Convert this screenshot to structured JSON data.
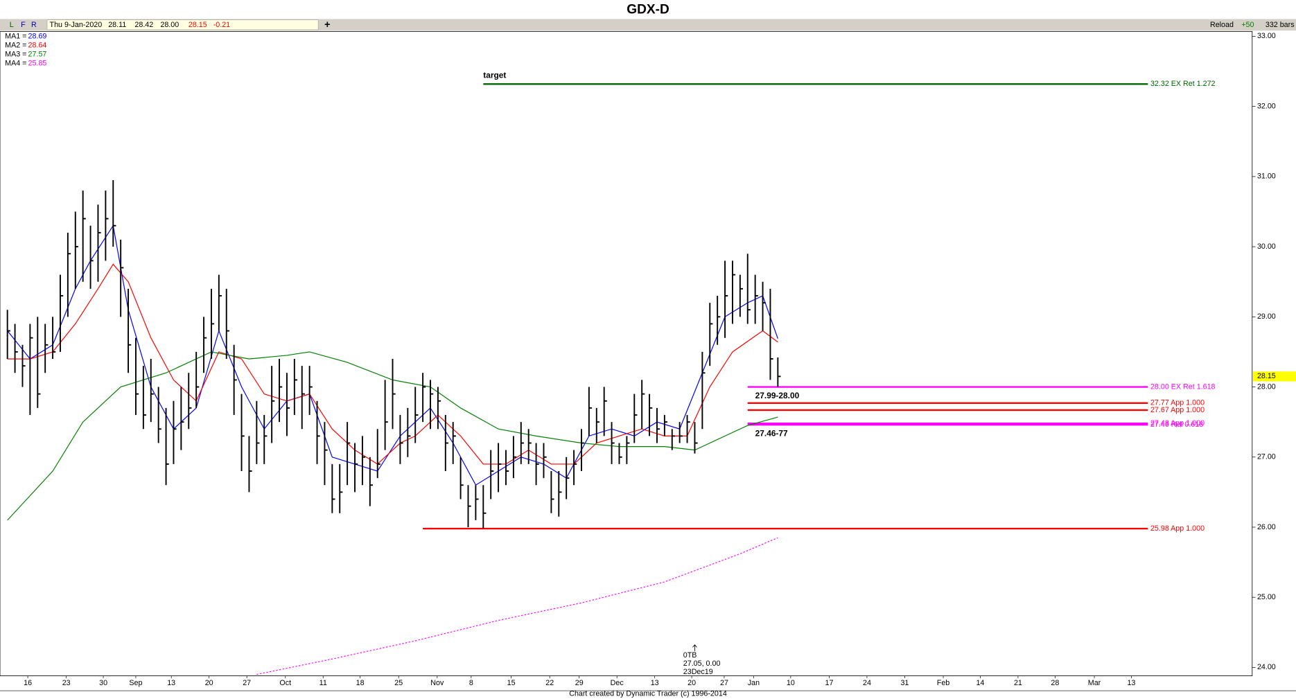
{
  "chart_data": {
    "type": "ohlc",
    "title": "GDX-D",
    "toolbar": {
      "buttons": [
        "L",
        "F",
        "R"
      ],
      "date": "Thu 9-Jan-2020",
      "fields": [
        "28.11",
        "28.42",
        "28.00",
        "28.15",
        "-0.21"
      ],
      "add": "+",
      "reload": "Reload",
      "step": "+50",
      "bars_count": "332 bars"
    },
    "footer": "Chart created by Dynamic Trader  (c) 1996-2014",
    "ylim": [
      23.88,
      33.07
    ],
    "yticks": [
      {
        "value": 24,
        "label": "24.00"
      },
      {
        "value": 25,
        "label": "25.00"
      },
      {
        "value": 26,
        "label": "26.00"
      },
      {
        "value": 27,
        "label": "27.00"
      },
      {
        "value": 28,
        "label": "28.00"
      },
      {
        "value": 29,
        "label": "29.00"
      },
      {
        "value": 30,
        "label": "30.00"
      },
      {
        "value": 31,
        "label": "31.00"
      },
      {
        "value": 32,
        "label": "32.00"
      },
      {
        "value": 33,
        "label": "33.00"
      }
    ],
    "xlim": [
      -0.98,
      164.8
    ],
    "xticks": [
      {
        "value": 2.7,
        "label": "16"
      },
      {
        "value": 7.8,
        "label": "23"
      },
      {
        "value": 12.7,
        "label": "30"
      },
      {
        "value": 17.0,
        "label": "Sep"
      },
      {
        "value": 21.7,
        "label": "13"
      },
      {
        "value": 26.7,
        "label": "20"
      },
      {
        "value": 31.7,
        "label": "27"
      },
      {
        "value": 36.8,
        "label": "Oct"
      },
      {
        "value": 41.8,
        "label": "11"
      },
      {
        "value": 46.7,
        "label": "18"
      },
      {
        "value": 51.8,
        "label": "25"
      },
      {
        "value": 56.9,
        "label": "Nov"
      },
      {
        "value": 61.4,
        "label": "8"
      },
      {
        "value": 66.7,
        "label": "15"
      },
      {
        "value": 71.8,
        "label": "22"
      },
      {
        "value": 75.7,
        "label": "29"
      },
      {
        "value": 80.7,
        "label": "Dec"
      },
      {
        "value": 85.7,
        "label": "13"
      },
      {
        "value": 90.6,
        "label": "20"
      },
      {
        "value": 94.9,
        "label": "27"
      },
      {
        "value": 98.8,
        "label": "Jan"
      },
      {
        "value": 103.7,
        "label": "10"
      },
      {
        "value": 108.8,
        "label": "17"
      },
      {
        "value": 113.8,
        "label": "24"
      },
      {
        "value": 118.8,
        "label": "31"
      },
      {
        "value": 123.9,
        "label": "Feb"
      },
      {
        "value": 128.8,
        "label": "14"
      },
      {
        "value": 133.8,
        "label": "21"
      },
      {
        "value": 138.7,
        "label": "28"
      },
      {
        "value": 143.9,
        "label": "Mar"
      },
      {
        "value": 148.8,
        "label": "13"
      }
    ],
    "bars": {
      "color": "#000000",
      "high": [
        29.1,
        28.9,
        28.6,
        28.9,
        29.0,
        28.9,
        29.0,
        29.6,
        30.2,
        30.5,
        30.8,
        30.3,
        30.6,
        30.8,
        30.95,
        30.1,
        29.4,
        28.7,
        28.3,
        28.4,
        28.0,
        27.7,
        27.8,
        28.0,
        28.2,
        28.5,
        29.0,
        29.4,
        29.6,
        29.4,
        28.6,
        27.9,
        27.3,
        27.8,
        27.6,
        28.3,
        28.4,
        28.2,
        28.4,
        28.3,
        28.3,
        27.8,
        27.5,
        26.9,
        26.9,
        27.5,
        27.2,
        27.3,
        27.0,
        27.4,
        28.1,
        28.4,
        27.6,
        27.7,
        28.0,
        28.2,
        28.1,
        28.0,
        27.6,
        27.5,
        27.0,
        26.6,
        26.6,
        26.6,
        27.1,
        27.2,
        27.1,
        27.3,
        27.5,
        27.4,
        27.2,
        27.2,
        26.8,
        26.8,
        27.0,
        27.1,
        27.4,
        28.0,
        27.7,
        28.0,
        27.5,
        27.2,
        27.3,
        27.9,
        28.1,
        27.9,
        27.7,
        27.6,
        27.4,
        27.5,
        27.6,
        27.5,
        28.5,
        29.2,
        29.3,
        29.8,
        29.8,
        29.6,
        29.9,
        29.6,
        29.5,
        29.4,
        28.42
      ],
      "low": [
        28.4,
        28.2,
        28.0,
        27.6,
        27.7,
        28.2,
        28.4,
        28.5,
        29.0,
        29.4,
        29.5,
        29.4,
        29.5,
        29.8,
        30.0,
        29.0,
        28.2,
        27.6,
        27.4,
        27.5,
        27.2,
        26.6,
        26.9,
        27.1,
        27.4,
        27.7,
        28.2,
        28.4,
        28.8,
        28.4,
        27.6,
        26.8,
        26.5,
        26.9,
        26.9,
        27.2,
        27.5,
        27.3,
        27.6,
        27.4,
        27.6,
        26.9,
        26.6,
        26.2,
        26.2,
        26.6,
        26.5,
        26.6,
        26.3,
        26.7,
        27.1,
        27.4,
        26.9,
        27.0,
        27.2,
        27.5,
        27.4,
        27.4,
        26.8,
        26.9,
        26.4,
        26.0,
        26.1,
        25.98,
        26.4,
        26.5,
        26.6,
        26.7,
        26.9,
        26.9,
        26.6,
        26.7,
        26.2,
        26.15,
        26.4,
        26.6,
        26.8,
        27.3,
        27.2,
        27.3,
        26.9,
        26.9,
        26.9,
        27.2,
        27.4,
        27.3,
        27.2,
        27.3,
        27.1,
        27.2,
        27.2,
        27.05,
        27.4,
        28.3,
        28.6,
        28.7,
        28.9,
        29.0,
        28.9,
        28.9,
        28.8,
        28.1,
        28.0
      ],
      "close": [
        28.8,
        28.5,
        28.3,
        28.7,
        27.9,
        28.6,
        28.5,
        29.3,
        29.9,
        30.0,
        30.4,
        29.8,
        30.2,
        30.4,
        30.3,
        29.7,
        28.6,
        27.9,
        27.6,
        27.9,
        27.4,
        26.9,
        27.4,
        27.5,
        27.7,
        28.0,
        28.7,
        28.9,
        29.3,
        28.8,
        28.1,
        27.3,
        26.8,
        27.2,
        27.3,
        27.8,
        28.0,
        27.7,
        28.1,
        27.9,
        28.0,
        27.3,
        27.1,
        26.4,
        26.5,
        27.2,
        26.9,
        27.0,
        26.6,
        26.9,
        27.5,
        27.9,
        27.2,
        27.3,
        27.6,
        28.0,
        27.9,
        27.8,
        27.2,
        27.3,
        26.6,
        26.3,
        26.4,
        26.2,
        26.8,
        26.9,
        26.8,
        27.0,
        27.2,
        27.2,
        26.9,
        27.0,
        26.4,
        26.5,
        26.7,
        26.9,
        27.2,
        27.7,
        27.5,
        27.8,
        27.2,
        27.0,
        27.2,
        27.6,
        27.9,
        27.7,
        27.4,
        27.5,
        27.3,
        27.3,
        27.5,
        27.2,
        28.2,
        28.9,
        29.0,
        29.3,
        29.6,
        29.4,
        29.1,
        29.3,
        29.2,
        28.4,
        28.15
      ]
    },
    "ma": [
      {
        "label": "MA1 =",
        "last": 28.69,
        "color": "#0000ff",
        "dotted": false,
        "x": [
          0,
          3,
          6,
          9,
          11,
          14,
          16,
          19,
          22,
          25,
          28,
          31,
          34,
          37,
          40,
          43,
          46,
          49,
          52,
          56,
          59,
          62,
          65,
          68,
          71,
          74,
          77,
          80,
          83,
          86,
          89,
          92,
          95,
          98,
          100,
          102
        ],
        "values": [
          28.8,
          28.4,
          28.6,
          29.4,
          29.8,
          30.3,
          29.1,
          28.0,
          27.4,
          27.7,
          28.8,
          28.0,
          27.4,
          27.8,
          27.9,
          27.0,
          26.9,
          26.8,
          27.3,
          27.7,
          27.2,
          26.6,
          26.8,
          27.0,
          26.9,
          26.7,
          27.3,
          27.4,
          27.3,
          27.5,
          27.4,
          28.2,
          29.0,
          29.2,
          29.3,
          28.69
        ]
      },
      {
        "label": "MA2 =",
        "last": 28.64,
        "color": "#ff0000",
        "dotted": false,
        "x": [
          0,
          3,
          6,
          9,
          12,
          14,
          16,
          19,
          22,
          25,
          28,
          31,
          34,
          37,
          40,
          43,
          46,
          49,
          52,
          54,
          57,
          60,
          63,
          66,
          69,
          72,
          75,
          78,
          81,
          84,
          87,
          90,
          93,
          96,
          100,
          102
        ],
        "values": [
          28.4,
          28.4,
          28.5,
          28.9,
          29.4,
          29.75,
          29.5,
          28.7,
          28.1,
          27.8,
          28.5,
          28.4,
          27.9,
          27.8,
          27.9,
          27.4,
          27.1,
          26.9,
          27.2,
          27.3,
          27.6,
          27.3,
          26.9,
          26.9,
          27.1,
          26.9,
          26.9,
          27.2,
          27.3,
          27.4,
          27.3,
          27.3,
          28.0,
          28.5,
          28.8,
          28.64
        ]
      },
      {
        "label": "MA3 =",
        "last": 27.57,
        "color": "#008000",
        "dotted": false,
        "x": [
          0,
          6,
          10,
          15,
          21,
          27,
          32,
          37,
          40,
          45,
          51,
          56,
          60,
          65,
          70,
          76,
          81,
          87,
          91,
          95,
          98,
          102
        ],
        "values": [
          26.1,
          26.8,
          27.5,
          28.0,
          28.2,
          28.5,
          28.4,
          28.45,
          28.5,
          28.35,
          28.1,
          28.0,
          27.7,
          27.4,
          27.3,
          27.2,
          27.15,
          27.15,
          27.1,
          27.3,
          27.45,
          27.57
        ]
      },
      {
        "label": "MA4 =",
        "last": 25.85,
        "color": "#ff00ff",
        "dotted": true,
        "x": [
          33,
          43,
          54,
          65,
          76,
          87,
          97,
          102
        ],
        "values": [
          23.9,
          24.12,
          24.38,
          24.67,
          24.92,
          25.22,
          25.62,
          25.85
        ]
      }
    ],
    "last_price": {
      "value": 28.15,
      "color": "#ffff00"
    },
    "levels": [
      {
        "value": 32.32,
        "start": 63,
        "end": 151,
        "color": "#006400",
        "label": "32.32 EX Ret 1.272"
      },
      {
        "value": 28.0,
        "start": 98,
        "end": 151,
        "color": "#ff00ff",
        "label": "28.00 EX Ret 1.618"
      },
      {
        "value": 27.77,
        "start": 98,
        "end": 151,
        "color": "#ff0000",
        "label": "27.77 App 1.000"
      },
      {
        "value": 27.67,
        "start": 98,
        "end": 151,
        "color": "#ff0000",
        "label": "27.67 App 1.000"
      },
      {
        "value": 27.48,
        "start": 98,
        "end": 151,
        "color": "#ff00ff",
        "label": "27.48 App 1.000"
      },
      {
        "value": 27.46,
        "start": 98,
        "end": 151,
        "color": "#ff00ff",
        "label": "27.46 Ret 0.618"
      },
      {
        "value": 25.98,
        "start": 55,
        "end": 151,
        "color": "#ff0000",
        "label": "25.98 App 1.000"
      }
    ],
    "annotations": [
      {
        "text": "target",
        "x": 63,
        "y": 32.44
      },
      {
        "text": "27.99-28.00",
        "x": 99,
        "y": 27.87
      },
      {
        "text": "27.46-77",
        "x": 99,
        "y": 27.33
      }
    ],
    "pivot": {
      "x": 91,
      "y": 24.17,
      "lines": [
        "0TB",
        "27.05, 0.00",
        "23Dec19"
      ]
    }
  }
}
